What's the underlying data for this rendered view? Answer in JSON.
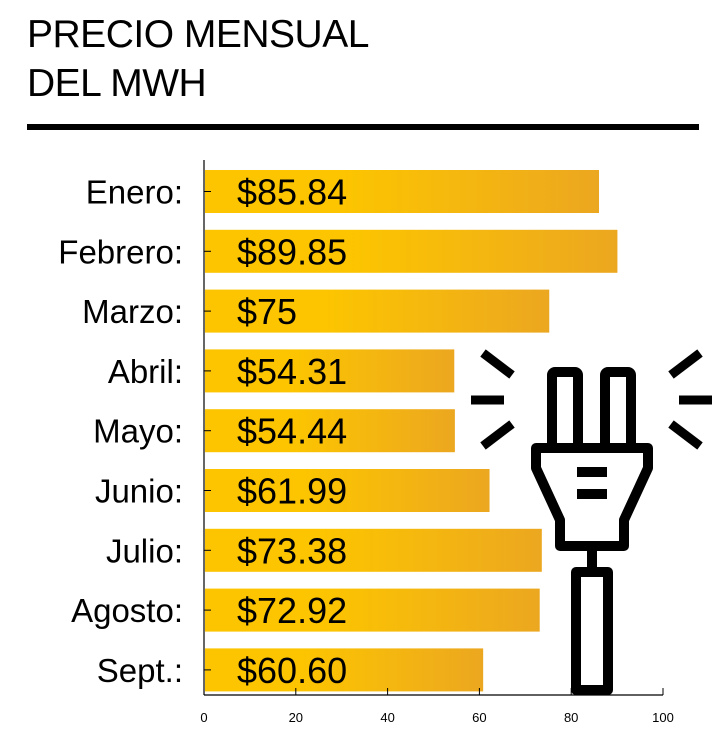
{
  "chart_data": {
    "type": "bar",
    "orientation": "horizontal",
    "title_lines": [
      "PRECIO MENSUAL",
      "DEL MWH"
    ],
    "categories": [
      "Enero:",
      "Febrero:",
      "Marzo:",
      "Abril:",
      "Mayo:",
      "Junio:",
      "Julio:",
      "Agosto:",
      "Sept.:"
    ],
    "values": [
      85.84,
      89.85,
      75,
      54.31,
      54.44,
      61.99,
      73.38,
      72.92,
      60.6
    ],
    "value_labels": [
      "$85.84",
      "$89.85",
      "$75",
      "$54.31",
      "$54.44",
      "$61.99",
      "$73.38",
      "$72.92",
      "$60.60"
    ],
    "xlim": [
      0,
      100
    ],
    "xticks": [
      "0",
      "20",
      "40",
      "60",
      "80",
      "100"
    ],
    "grid": false,
    "colors": {
      "bar_start": "#fcc500",
      "bar_end": "#eca720",
      "text": "#000000"
    },
    "icon": "electric-plug-icon"
  }
}
